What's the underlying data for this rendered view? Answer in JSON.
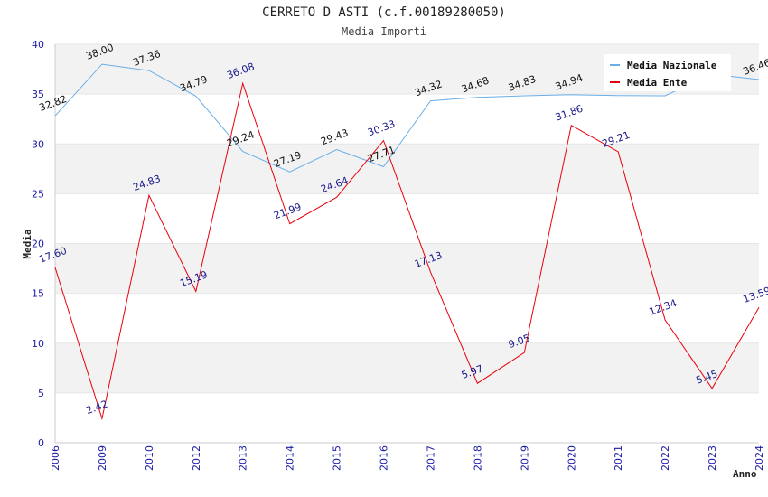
{
  "chart_data": {
    "type": "line",
    "title": "CERRETO D ASTI (c.f.00189280050)",
    "subtitle": "Media Importi",
    "xlabel": "Anno",
    "ylabel": "Media",
    "ylim": [
      0,
      40
    ],
    "yticks": [
      0,
      5,
      10,
      15,
      20,
      25,
      30,
      35,
      40
    ],
    "grid": true,
    "legend_position": "top-right",
    "categories": [
      "2006",
      "2009",
      "2010",
      "2012",
      "2013",
      "2014",
      "2015",
      "2016",
      "2017",
      "2018",
      "2019",
      "2020",
      "2021",
      "2022",
      "2023",
      "2024"
    ],
    "series": [
      {
        "name": "Media Nazionale",
        "color": "#6aaee8",
        "label_color": "#111111",
        "values": [
          32.82,
          38.0,
          37.36,
          34.79,
          29.24,
          27.19,
          29.43,
          27.71,
          34.32,
          34.68,
          34.83,
          34.94,
          34.85,
          34.83,
          37.0,
          36.46
        ],
        "labels": [
          "32.82",
          "38.00",
          "37.36",
          "34.79",
          "29.24",
          "27.19",
          "29.43",
          "27.71",
          "34.32",
          "34.68",
          "34.83",
          "34.94",
          "",
          "",
          "",
          "36.46"
        ]
      },
      {
        "name": "Media Ente",
        "color": "#e8000b",
        "label_color": "#1a1a8c",
        "values": [
          17.6,
          2.42,
          24.83,
          15.19,
          36.08,
          21.99,
          24.64,
          30.33,
          17.13,
          5.97,
          9.05,
          31.86,
          29.21,
          12.34,
          5.45,
          13.59
        ],
        "labels": [
          "17.60",
          "2.42",
          "24.83",
          "15.19",
          "36.08",
          "21.99",
          "24.64",
          "30.33",
          "17.13",
          "5.97",
          "9.05",
          "31.86",
          "29.21",
          "12.34",
          "5.45",
          "13.59"
        ]
      }
    ]
  }
}
